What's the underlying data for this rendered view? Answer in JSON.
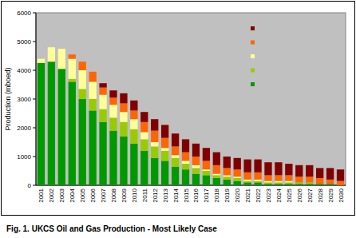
{
  "chart_data": {
    "type": "bar",
    "title": "Fig. 1. UKCS Oil and Gas Production - Most Likely Case",
    "y_label": "Production (mboed)",
    "stacked": true,
    "legend": "top-right",
    "grid": false,
    "categories": [
      "2001",
      "2002",
      "2003",
      "2004",
      "2005",
      "2006",
      "2007",
      "2008",
      "2009",
      "2010",
      "2011",
      "2012",
      "2013",
      "2014",
      "2015",
      "2016",
      "2017",
      "2018",
      "2019",
      "2020",
      "2021",
      "2022",
      "2023",
      "2024",
      "2025",
      "2026",
      "2027",
      "2028",
      "2029",
      "2030"
    ],
    "series": [
      {
        "color": "#009900",
        "values": [
          4250,
          4300,
          4050,
          3600,
          3000,
          2600,
          2200,
          1900,
          1700,
          1450,
          1200,
          950,
          850,
          650,
          550,
          400,
          350,
          250,
          200,
          150,
          100,
          100,
          50,
          50,
          50,
          50,
          50,
          50,
          50,
          0
        ]
      },
      {
        "color": "#99cc00",
        "values": [
          0,
          0,
          0,
          100,
          350,
          400,
          450,
          450,
          500,
          500,
          400,
          400,
          350,
          300,
          200,
          200,
          150,
          100,
          100,
          100,
          50,
          50,
          50,
          50,
          50,
          50,
          50,
          0,
          0,
          0
        ]
      },
      {
        "color": "#ffff99",
        "values": [
          150,
          500,
          700,
          700,
          650,
          600,
          500,
          450,
          350,
          350,
          250,
          150,
          100,
          100,
          100,
          100,
          50,
          50,
          50,
          50,
          50,
          50,
          50,
          50,
          50,
          0,
          0,
          0,
          0,
          0
        ]
      },
      {
        "color": "#ff6600",
        "values": [
          0,
          0,
          0,
          150,
          300,
          350,
          250,
          250,
          300,
          300,
          350,
          400,
          350,
          300,
          300,
          300,
          300,
          300,
          250,
          250,
          250,
          250,
          200,
          200,
          200,
          200,
          200,
          200,
          150,
          150
        ]
      },
      {
        "color": "#800000",
        "values": [
          0,
          0,
          0,
          0,
          0,
          0,
          150,
          250,
          350,
          350,
          350,
          400,
          450,
          450,
          450,
          450,
          450,
          450,
          400,
          400,
          450,
          450,
          450,
          450,
          400,
          400,
          400,
          350,
          400,
          400
        ]
      }
    ],
    "ylim": [
      0,
      6000
    ],
    "yticks": [
      0,
      1000,
      2000,
      3000,
      4000,
      5000,
      6000
    ]
  }
}
